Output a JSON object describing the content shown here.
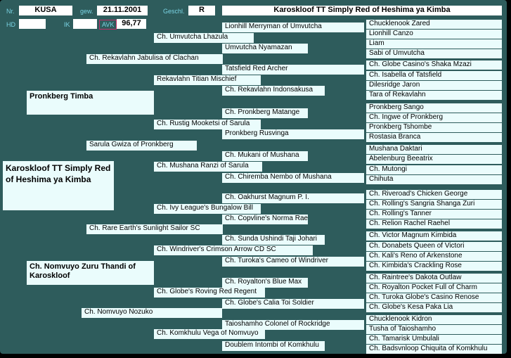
{
  "header": {
    "nr_label": "Nr.",
    "nr_value": "KUSA",
    "gew_label": "gew.",
    "date": "21.11.2001",
    "geschl_label": "Geschl.",
    "geschl_value": "R",
    "title": "Karoskloof TT Simply Red of Heshima ya Kimba",
    "hd_label": "HD",
    "ik_label": "IK",
    "avk_label": "AVK",
    "avk_value": "96,77"
  },
  "subject": "Karoskloof TT Simply Red of Heshima ya Kimba",
  "gen1": [
    "Pronkberg Timba",
    "Ch. Nomvuyo Zuru Thandi of Karoskloof"
  ],
  "gen2": [
    "Ch. Rekavlahn Jabulisa of Clachan",
    "Sarula Gwiza of Pronkberg",
    "Ch. Rare Earth's Sunlight Sailor SC",
    "Ch. Nomvuyo Nozuko"
  ],
  "gen3": [
    "Ch. Umvutcha Lhazula",
    "Rekavlahn Titian Mischief",
    "Ch. Rustig Mooketsi of Sarula",
    "Ch. Mushana Ranzi of Sarula",
    "Ch. Ivy League's Bungalow Bill",
    "Ch. Windriver's Crimson Arrow CD SC",
    "Ch. Globe's Roving Red Regent",
    "Ch. Komkhulu Vega of Nomvuyo"
  ],
  "gen4": [
    "Lionhill Merryman of Umvutcha",
    "Umvutcha Nyamazan",
    "Tatsfield Red Archer",
    "Ch. Rekavlahn Indonsakusa",
    "Ch. Pronkberg Matange",
    "Pronkberg Rusvinga",
    "Ch. Mukani of Mushana",
    "Ch. Chiremba Nembo of Mushana",
    "Ch. Oakhurst Magnum P. I.",
    "Ch. Copvline's Norma Rae",
    "Ch. Sunda Ushindi Taji Johari",
    "Ch. Turoka's Cameo of Windriver",
    "Ch. Royalton's Blue Max",
    "Ch. Globe's Calia Toi Soldier",
    "Taioshamho Colonel of Rockridge",
    "Doublem Intombi of Komkhulu"
  ],
  "gen5": [
    "Chucklenook Zared",
    "Lionhill Canzo",
    "Liam",
    "Sabi of Umvutcha",
    "Ch. Globe Casino's Shaka Mzazi",
    "Ch. Isabella of Tatsfield",
    "Dilesridge Jaron",
    "Tara of Rekavlahn",
    "Pronkberg Sango",
    "Ch. Ingwe of Pronkberg",
    "Pronkberg Tshombe",
    "Rostasia Branca",
    "Mushana Daktari",
    "Abelenburg Beeatrix",
    "Ch. Mutongi",
    "Chihuta",
    "Ch. Riveroad's Chicken George",
    "Ch. Rolling's Sangria Shanga Zuri",
    "Ch. Rolling's Tanner",
    "Ch. Relion Rachel Raehel",
    "Ch. Victor Magnum Kimbida",
    "Ch. Donabets Queen of Victori",
    "Ch. Kali's Reno of Arkenstone",
    "Ch. Kimbida's Crackling Rose",
    "Ch. Raintree's Dakota Outlaw",
    "Ch. Royalton Pocket Full of Charm",
    "Ch. Turoka Globe's Casino Renose",
    "Ch. Globe's Kesa Paka Lia",
    "Chucklenook Kidron",
    "Tusha of Taioshamho",
    "Ch. Tamarisk Umbulali",
    "Ch. Badsvnloop Chiquita of Komkhulu"
  ]
}
